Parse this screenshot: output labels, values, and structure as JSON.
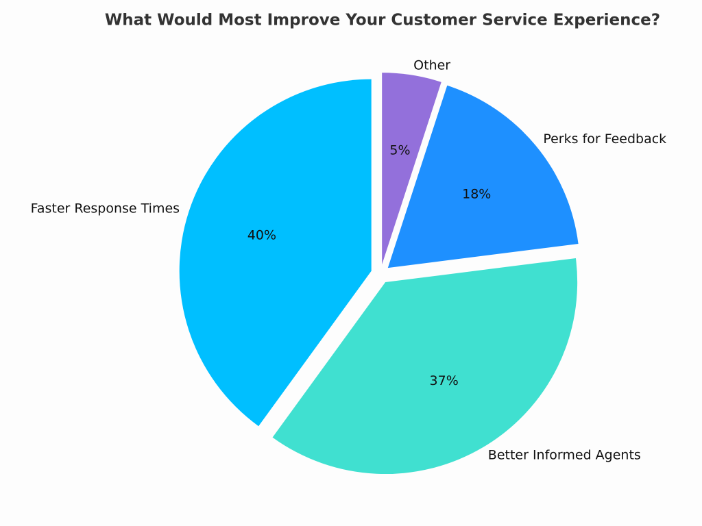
{
  "chart_data": {
    "type": "pie",
    "title": "What Would Most Improve Your Customer Service Experience?",
    "categories": [
      "Faster Response Times",
      "Better Informed Agents",
      "Perks for Feedback",
      "Other"
    ],
    "values": [
      40,
      37,
      18,
      5
    ],
    "value_labels": [
      "40%",
      "37%",
      "18%",
      "5%"
    ],
    "colors": [
      "#00bfff",
      "#40e0d0",
      "#1e90ff",
      "#9370db"
    ]
  }
}
